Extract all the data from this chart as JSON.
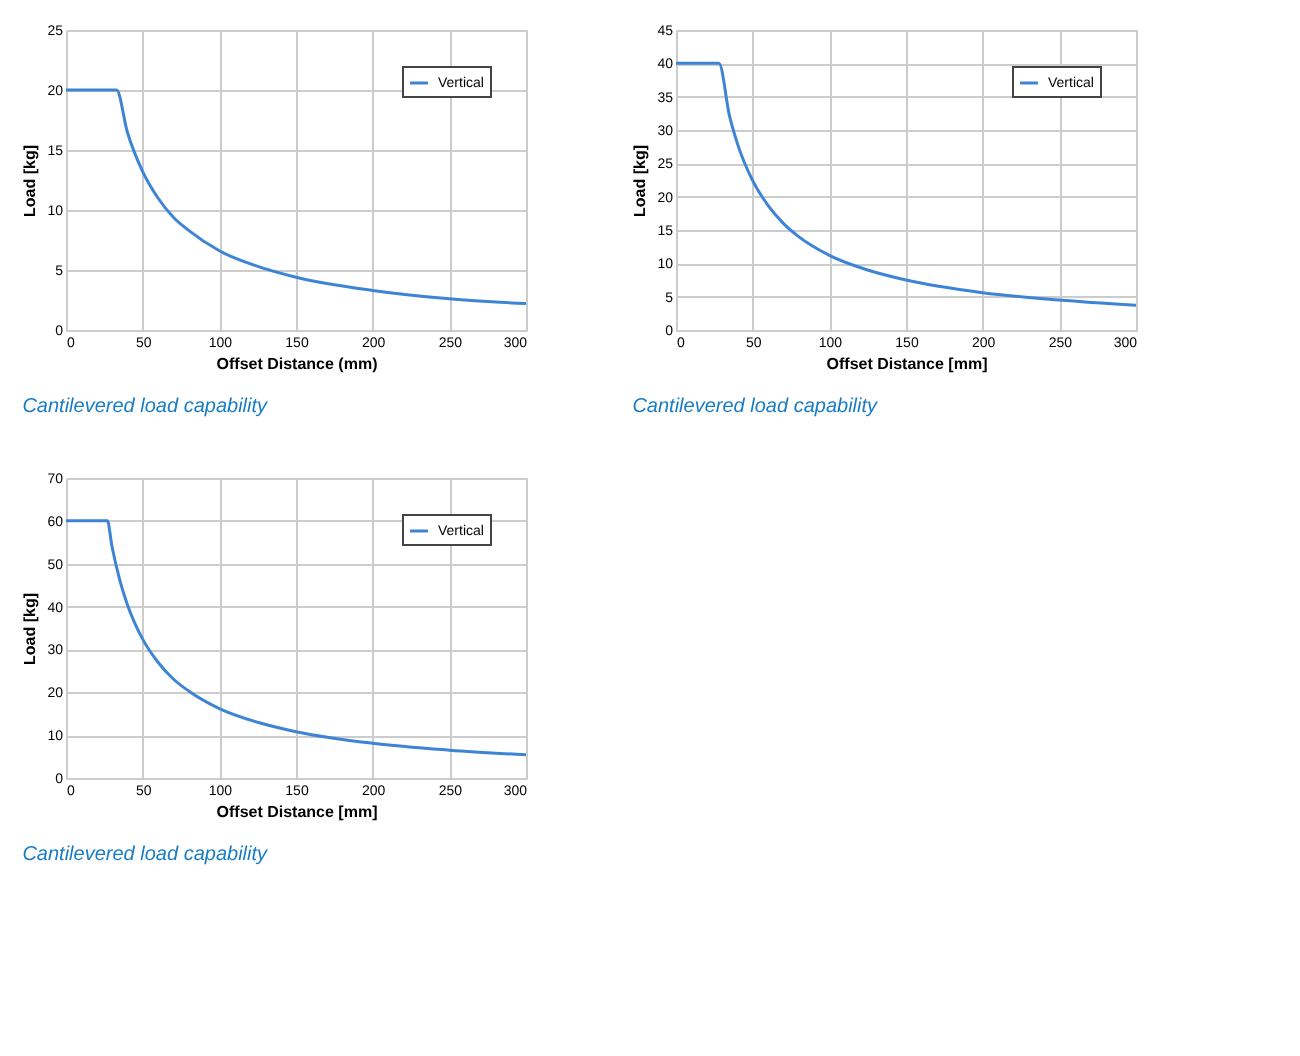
{
  "chart_data": [
    {
      "type": "line",
      "xlabel": "Offset Distance (mm)",
      "ylabel": "Load [kg]",
      "xlim": [
        0,
        300
      ],
      "xticks": [
        0,
        50,
        100,
        150,
        200,
        250,
        300
      ],
      "ylim": [
        0,
        25
      ],
      "yticks": [
        0,
        5,
        10,
        15,
        20,
        25
      ],
      "grid": true,
      "legend": "top right",
      "annotations": [
        "Cantilevered load capability"
      ],
      "series": [
        {
          "name": "Vertical",
          "color": "#3d85d4",
          "x": [
            0,
            33,
            40,
            50,
            60,
            70,
            80,
            100,
            125,
            150,
            200,
            250,
            300
          ],
          "values": [
            20,
            20,
            16.5,
            13.2,
            11,
            9.4,
            8.3,
            6.6,
            5.3,
            4.4,
            3.3,
            2.6,
            2.2
          ]
        }
      ]
    },
    {
      "type": "line",
      "xlabel": "Offset Distance [mm]",
      "ylabel": "Load [kg]",
      "xlim": [
        0,
        300
      ],
      "xticks": [
        0,
        50,
        100,
        150,
        200,
        250,
        300
      ],
      "ylim": [
        0,
        45
      ],
      "yticks": [
        0,
        5,
        10,
        15,
        20,
        25,
        30,
        35,
        40,
        45
      ],
      "grid": true,
      "legend": "top right",
      "annotations": [
        "Cantilevered load capability"
      ],
      "series": [
        {
          "name": "Vertical",
          "color": "#3d85d4",
          "x": [
            0,
            28,
            35,
            40,
            50,
            60,
            70,
            80,
            100,
            125,
            150,
            200,
            250,
            300
          ],
          "values": [
            40,
            40,
            32,
            28,
            22.4,
            18.7,
            16,
            14,
            11.2,
            9,
            7.5,
            5.6,
            4.5,
            3.7
          ]
        }
      ]
    },
    {
      "type": "line",
      "xlabel": "Offset Distance [mm]",
      "ylabel": "Load [kg]",
      "xlim": [
        0,
        300
      ],
      "xticks": [
        0,
        50,
        100,
        150,
        200,
        250,
        300
      ],
      "ylim": [
        0,
        70
      ],
      "yticks": [
        0,
        10,
        20,
        30,
        40,
        50,
        60,
        70
      ],
      "grid": true,
      "legend": "top right",
      "annotations": [
        "Cantilevered load capability"
      ],
      "series": [
        {
          "name": "Vertical",
          "color": "#3d85d4",
          "x": [
            0,
            27,
            30,
            35,
            40,
            50,
            60,
            70,
            80,
            100,
            125,
            150,
            200,
            250,
            300
          ],
          "values": [
            60,
            60,
            54,
            46.3,
            40.5,
            32.4,
            27,
            23.1,
            20.3,
            16.2,
            13,
            10.8,
            8.1,
            6.5,
            5.4
          ]
        }
      ]
    }
  ]
}
